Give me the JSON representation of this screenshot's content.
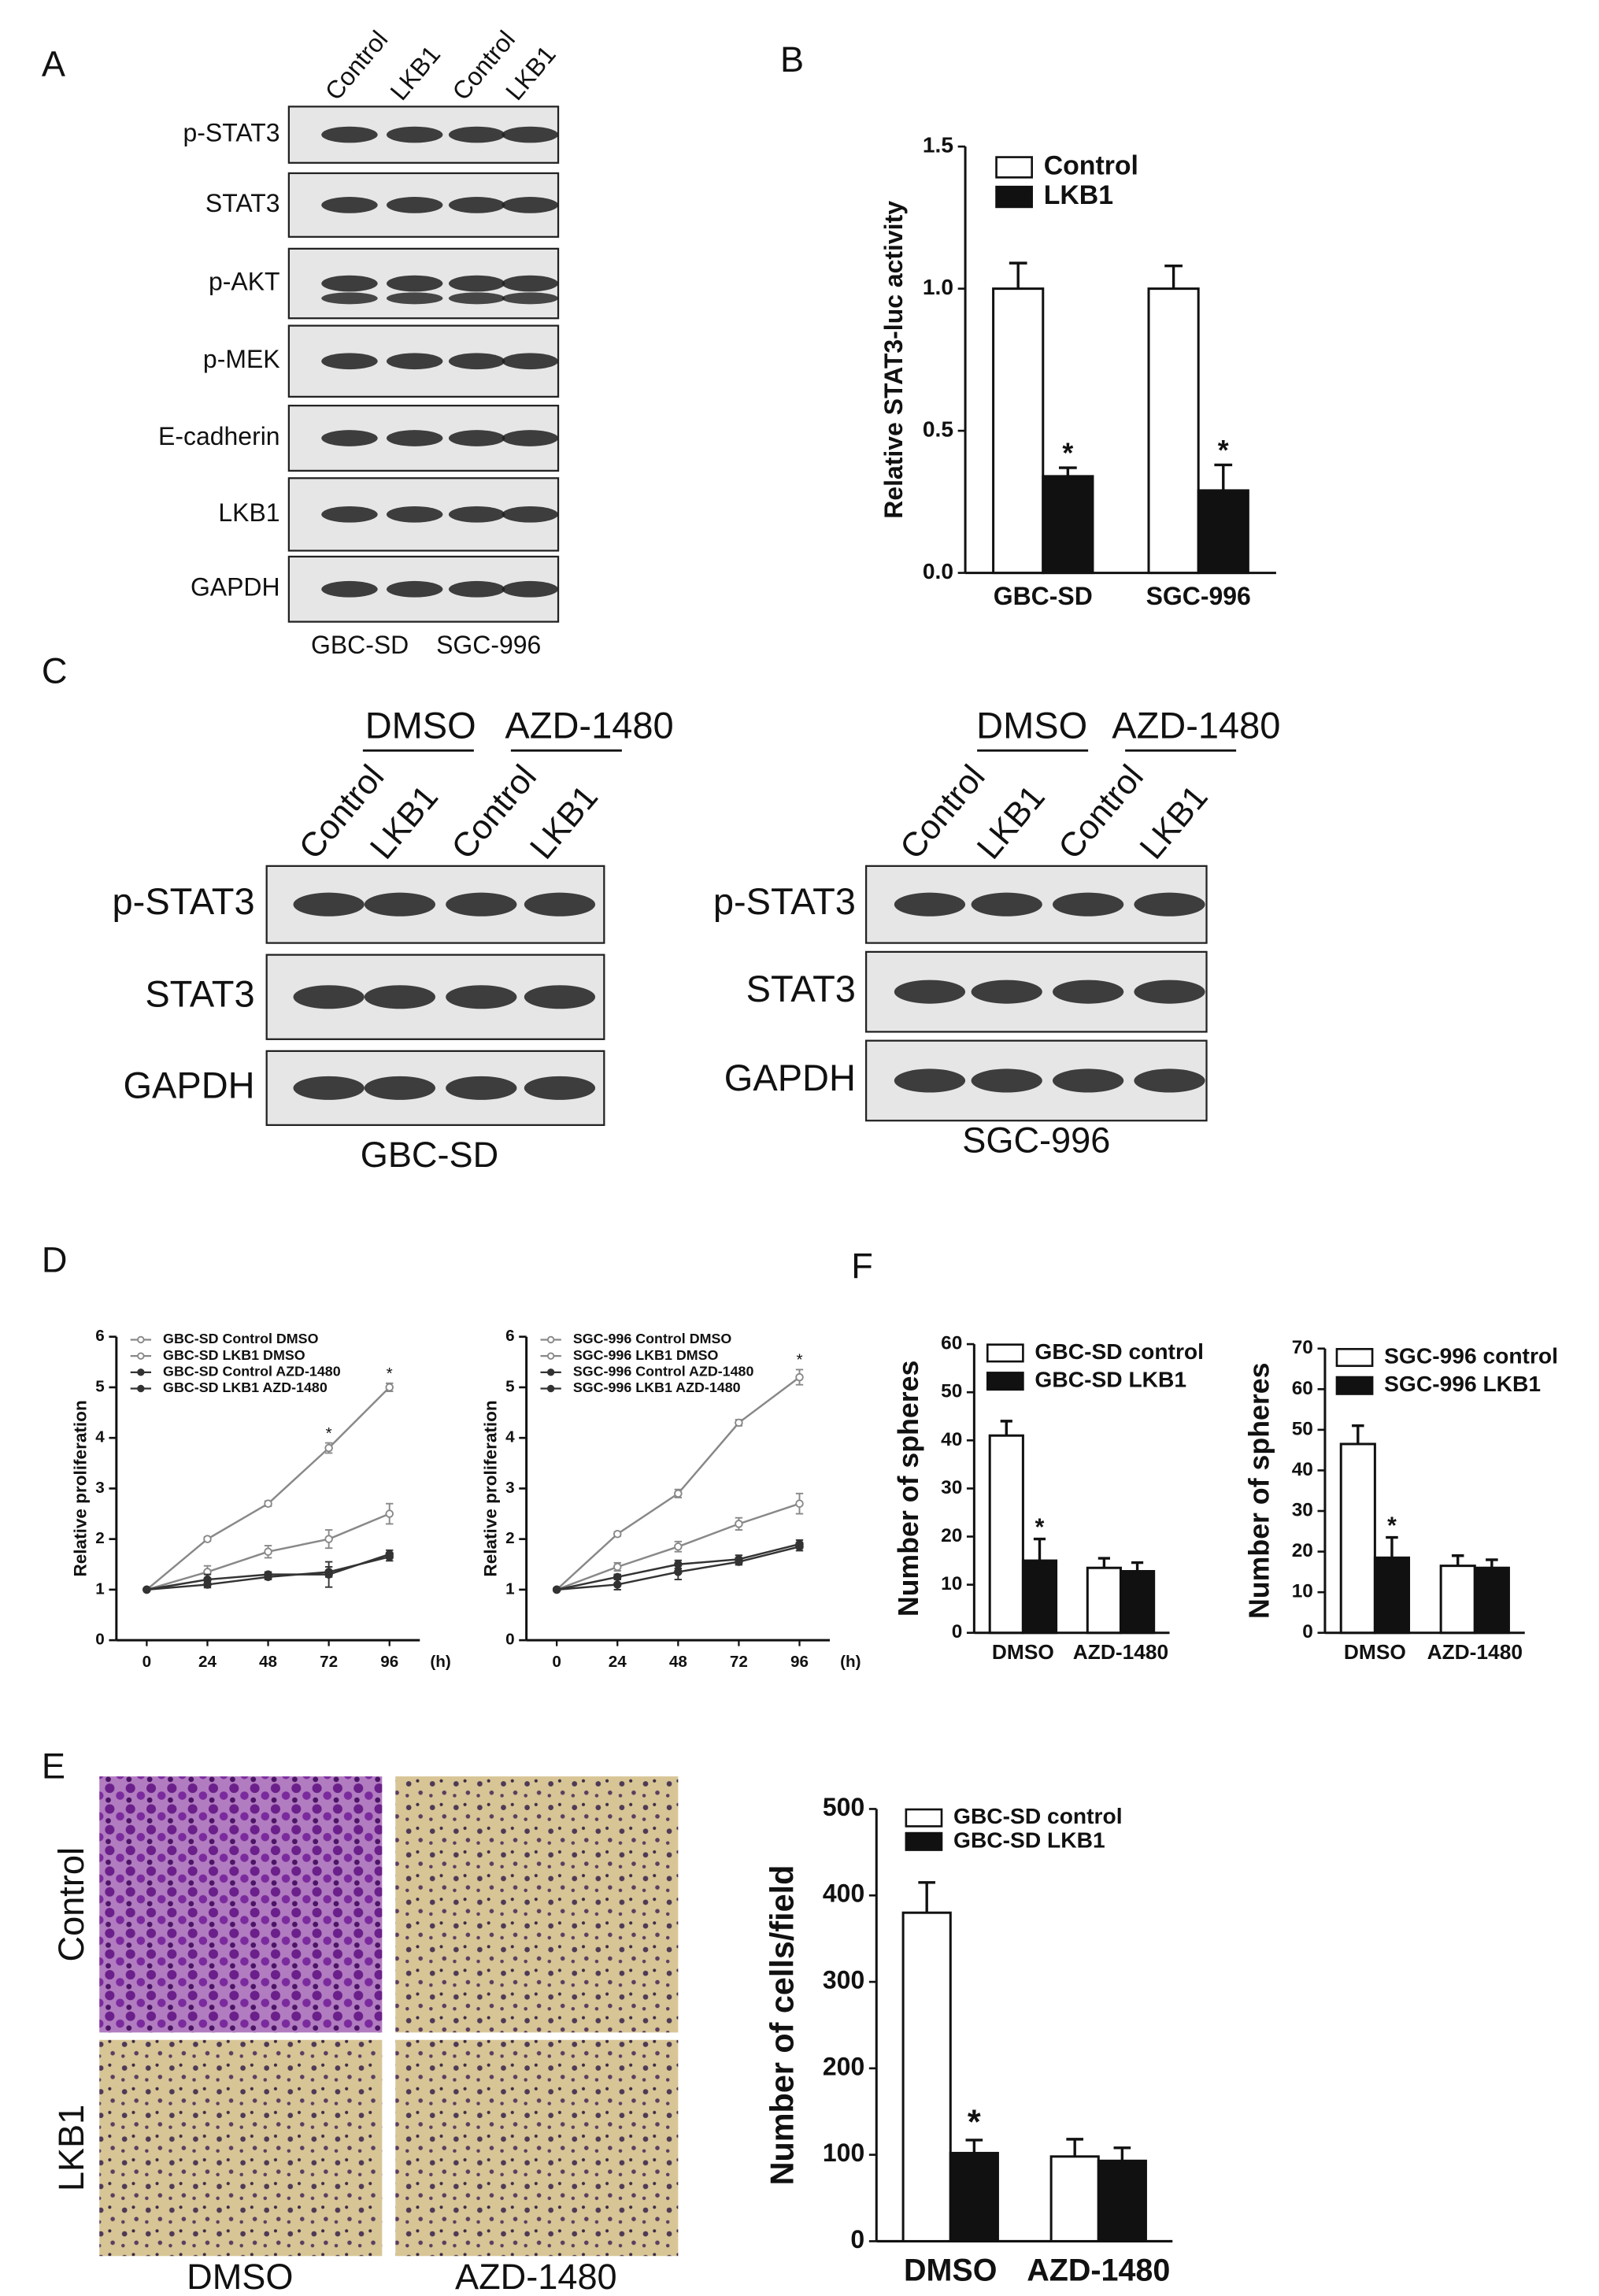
{
  "panel_labels": [
    "A",
    "B",
    "C",
    "D",
    "E",
    "F"
  ],
  "blot_a": {
    "lanes": [
      "Control",
      "LKB1",
      "Control",
      "LKB1"
    ],
    "proteins": [
      "p-STAT3",
      "STAT3",
      "p-AKT",
      "p-MEK",
      "E-cadherin",
      "LKB1",
      "GAPDH"
    ],
    "cell_lines": [
      "GBC-SD",
      "SGC-996"
    ]
  },
  "blot_c": [
    {
      "groups": [
        "DMSO",
        "AZD-1480"
      ],
      "lanes": [
        "Control",
        "LKB1",
        "Control",
        "LKB1"
      ],
      "proteins": [
        "p-STAT3",
        "STAT3",
        "GAPDH"
      ],
      "cell_line": "GBC-SD"
    },
    {
      "groups": [
        "DMSO",
        "AZD-1480"
      ],
      "lanes": [
        "Control",
        "LKB1",
        "Control",
        "LKB1"
      ],
      "proteins": [
        "p-STAT3",
        "STAT3",
        "GAPDH"
      ],
      "cell_line": "SGC-996"
    }
  ],
  "micrographs": {
    "rows": [
      "Control",
      "LKB1"
    ],
    "columns": [
      "DMSO",
      "AZD-1480"
    ]
  },
  "chart_data": [
    {
      "type": "bar",
      "y_label": "Relative STAT3-luc activity",
      "categories": [
        "GBC-SD",
        "SGC-996"
      ],
      "series": [
        {
          "name": "Control",
          "color": "#ffffff",
          "values": [
            1.0,
            1.0
          ],
          "errors": [
            0.09,
            0.08
          ],
          "markers": [
            null,
            null
          ]
        },
        {
          "name": "LKB1",
          "color": "#111111",
          "values": [
            0.34,
            0.29
          ],
          "errors": [
            0.03,
            0.09
          ],
          "markers": [
            "*",
            "*"
          ]
        }
      ],
      "ylim": [
        0,
        1.5
      ],
      "yticks": [
        {
          "value": 0,
          "label": "0.0"
        },
        {
          "value": 0.5,
          "label": "0.5"
        },
        {
          "value": 1,
          "label": "1.0"
        },
        {
          "value": 1.5,
          "label": "1.5"
        }
      ],
      "legend": "top-left"
    },
    {
      "type": "line",
      "y_label": "Relative proliferation",
      "x_label": "(h)",
      "x": [
        0,
        24,
        48,
        72,
        96
      ],
      "series": [
        {
          "name": "GBC-SD Control DMSO",
          "color": "#888888",
          "marker_fill": "#ffffff",
          "values": [
            1,
            2.0,
            2.7,
            3.8,
            5.0
          ],
          "errors": [
            0,
            0.04,
            0.05,
            0.1,
            0.08
          ],
          "markers": [
            null,
            null,
            null,
            "*",
            "*"
          ]
        },
        {
          "name": "GBC-SD LKB1 DMSO",
          "color": "#888888",
          "marker_fill": "#ffffff",
          "values": [
            1,
            1.35,
            1.75,
            2.0,
            2.5
          ],
          "errors": [
            0,
            0.12,
            0.12,
            0.18,
            0.2
          ],
          "markers": [
            null,
            null,
            null,
            null,
            null
          ]
        },
        {
          "name": "GBC-SD Control AZD-1480",
          "color": "#333333",
          "marker_fill": "#333333",
          "values": [
            1,
            1.2,
            1.3,
            1.3,
            1.7
          ],
          "errors": [
            0,
            0.1,
            0.05,
            0.25,
            0.08
          ],
          "markers": [
            null,
            null,
            null,
            null,
            null
          ]
        },
        {
          "name": "GBC-SD LKB1 AZD-1480",
          "color": "#333333",
          "marker_fill": "#333333",
          "values": [
            1,
            1.1,
            1.25,
            1.35,
            1.65
          ],
          "errors": [
            0,
            0.06,
            0.05,
            0.1,
            0.08
          ],
          "markers": [
            null,
            null,
            null,
            null,
            null
          ]
        }
      ],
      "xlim": [
        -12,
        108
      ],
      "xticks": [
        0,
        24,
        48,
        72,
        96
      ],
      "ylim": [
        0,
        6
      ],
      "yticks": [
        0,
        1,
        2,
        3,
        4,
        5,
        6
      ],
      "legend": "top-left"
    },
    {
      "type": "line",
      "y_label": "Relative proliferation",
      "x_label": "(h)",
      "x": [
        0,
        24,
        48,
        72,
        96
      ],
      "series": [
        {
          "name": "SGC-996 Control DMSO",
          "color": "#888888",
          "marker_fill": "#ffffff",
          "values": [
            1,
            2.1,
            2.9,
            4.3,
            5.2
          ],
          "errors": [
            0,
            0.04,
            0.08,
            0.06,
            0.15
          ],
          "markers": [
            null,
            null,
            null,
            null,
            "*"
          ]
        },
        {
          "name": "SGC-996 LKB1 DMSO",
          "color": "#888888",
          "marker_fill": "#ffffff",
          "values": [
            1,
            1.45,
            1.85,
            2.3,
            2.7
          ],
          "errors": [
            0,
            0.08,
            0.1,
            0.12,
            0.2
          ],
          "markers": [
            null,
            null,
            null,
            null,
            null
          ]
        },
        {
          "name": "SGC-996 Control AZD-1480",
          "color": "#333333",
          "marker_fill": "#333333",
          "values": [
            1,
            1.25,
            1.5,
            1.6,
            1.9
          ],
          "errors": [
            0,
            0.05,
            0.08,
            0.08,
            0.08
          ],
          "markers": [
            null,
            null,
            null,
            null,
            null
          ]
        },
        {
          "name": "SGC-996 LKB1 AZD-1480",
          "color": "#333333",
          "marker_fill": "#333333",
          "values": [
            1,
            1.1,
            1.35,
            1.55,
            1.85
          ],
          "errors": [
            0,
            0.1,
            0.15,
            0.06,
            0.08
          ],
          "markers": [
            null,
            null,
            null,
            null,
            null
          ]
        }
      ],
      "xlim": [
        -12,
        108
      ],
      "xticks": [
        0,
        24,
        48,
        72,
        96
      ],
      "ylim": [
        0,
        6
      ],
      "yticks": [
        0,
        1,
        2,
        3,
        4,
        5,
        6
      ],
      "legend": "top-left"
    },
    {
      "type": "bar",
      "y_label": "Number of spheres",
      "categories": [
        "DMSO",
        "AZD-1480"
      ],
      "series": [
        {
          "name": "GBC-SD control",
          "color": "#ffffff",
          "values": [
            41,
            13.5
          ],
          "errors": [
            3,
            2
          ],
          "markers": [
            null,
            null
          ]
        },
        {
          "name": "GBC-SD LKB1",
          "color": "#111111",
          "values": [
            15,
            12.8
          ],
          "errors": [
            4.5,
            1.8
          ],
          "markers": [
            "*",
            null
          ]
        }
      ],
      "ylim": [
        0,
        60
      ],
      "yticks": [
        0,
        10,
        20,
        30,
        40,
        50,
        60
      ],
      "legend": "top-left"
    },
    {
      "type": "bar",
      "y_label": "Number of spheres",
      "categories": [
        "DMSO",
        "AZD-1480"
      ],
      "series": [
        {
          "name": "SGC-996 control",
          "color": "#ffffff",
          "values": [
            46.5,
            16.5
          ],
          "errors": [
            4.5,
            2.5
          ],
          "markers": [
            null,
            null
          ]
        },
        {
          "name": "SGC-996 LKB1",
          "color": "#111111",
          "values": [
            18.5,
            16
          ],
          "errors": [
            5,
            2
          ],
          "markers": [
            "*",
            null
          ]
        }
      ],
      "ylim": [
        0,
        70
      ],
      "yticks": [
        0,
        10,
        20,
        30,
        40,
        50,
        60,
        70
      ],
      "legend": "top-left"
    },
    {
      "type": "bar",
      "y_label": "Number of cells/field",
      "categories": [
        "DMSO",
        "AZD-1480"
      ],
      "series": [
        {
          "name": "GBC-SD control",
          "color": "#ffffff",
          "values": [
            380,
            98
          ],
          "errors": [
            35,
            20
          ],
          "markers": [
            null,
            null
          ]
        },
        {
          "name": "GBC-SD LKB1",
          "color": "#111111",
          "values": [
            102,
            93
          ],
          "errors": [
            15,
            15
          ],
          "markers": [
            "*",
            null
          ]
        }
      ],
      "ylim": [
        0,
        500
      ],
      "yticks": [
        0,
        100,
        200,
        300,
        400,
        500
      ],
      "legend": "top-left"
    }
  ]
}
